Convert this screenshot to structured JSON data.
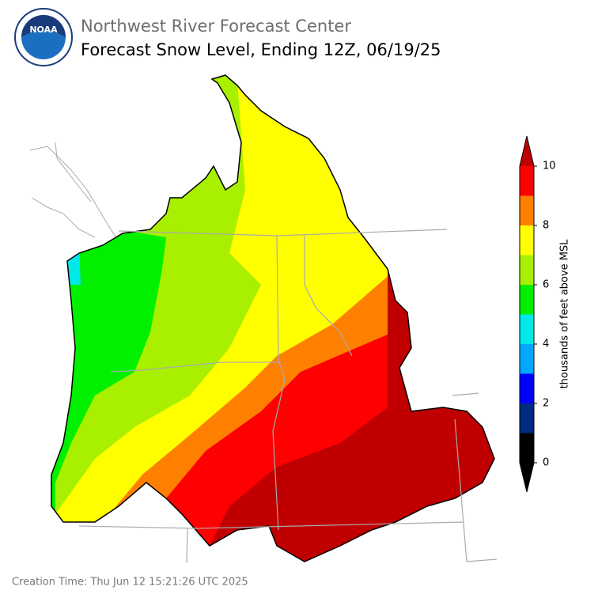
{
  "header": {
    "org": "Northwest River Forecast Center",
    "title": "Forecast Snow Level, Ending 12Z, 06/19/25",
    "logo_text": "NOAA"
  },
  "colorbar": {
    "label": "thousands of feet above MSL",
    "lim": [
      0,
      10
    ],
    "ticks": [
      0,
      2,
      4,
      6,
      8,
      10
    ],
    "bounds": [
      0,
      1,
      2,
      3,
      4,
      5,
      6,
      7,
      8,
      9,
      10
    ],
    "colors": [
      "#000000",
      "#002a80",
      "#0000ff",
      "#00a8ff",
      "#00e8e8",
      "#00f000",
      "#a8f000",
      "#ffff00",
      "#ff8000",
      "#ff0000"
    ],
    "under_color": "#000000",
    "over_color": "#c00000"
  },
  "footer": {
    "creation_time": "Creation Time: Thu Jun 12 15:21:26 UTC 2025"
  }
}
